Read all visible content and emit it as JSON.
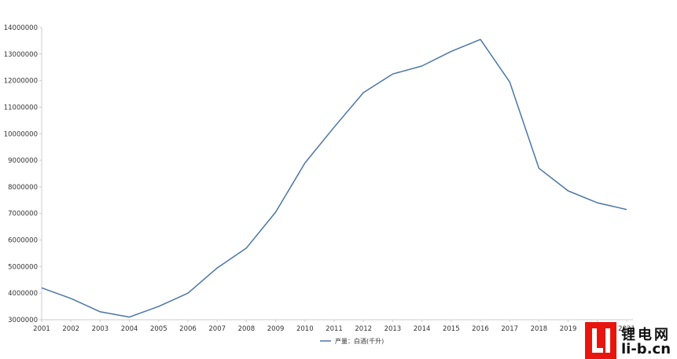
{
  "chart_data": {
    "type": "line",
    "title": "",
    "xlabel": "",
    "ylabel": "",
    "x": [
      "2001",
      "2002",
      "2003",
      "2004",
      "2005",
      "2006",
      "2007",
      "2008",
      "2009",
      "2010",
      "2011",
      "2012",
      "2013",
      "2014",
      "2015",
      "2016",
      "2017",
      "2018",
      "2019",
      "2020",
      "2021"
    ],
    "ylim": [
      3000000,
      14000000
    ],
    "yticks": [
      "3000000",
      "4000000",
      "5000000",
      "6000000",
      "7000000",
      "8000000",
      "9000000",
      "10000000",
      "11000000",
      "12000000",
      "13000000",
      "14000000"
    ],
    "series": [
      {
        "name": "产量：白酒(千升)",
        "color": "#4a76a8",
        "values": [
          4200000,
          3800000,
          3300000,
          3100000,
          3500000,
          4000000,
          4950000,
          5700000,
          7050000,
          8900000,
          10250000,
          11550000,
          12250000,
          12550000,
          13100000,
          13550000,
          11950000,
          8700000,
          7850000,
          7400000,
          7150000
        ]
      }
    ],
    "legend_position": "bottom-center",
    "grid": false
  },
  "watermark": {
    "logo_text_cn": "锂电网",
    "logo_text_en": "li-b.cn"
  }
}
